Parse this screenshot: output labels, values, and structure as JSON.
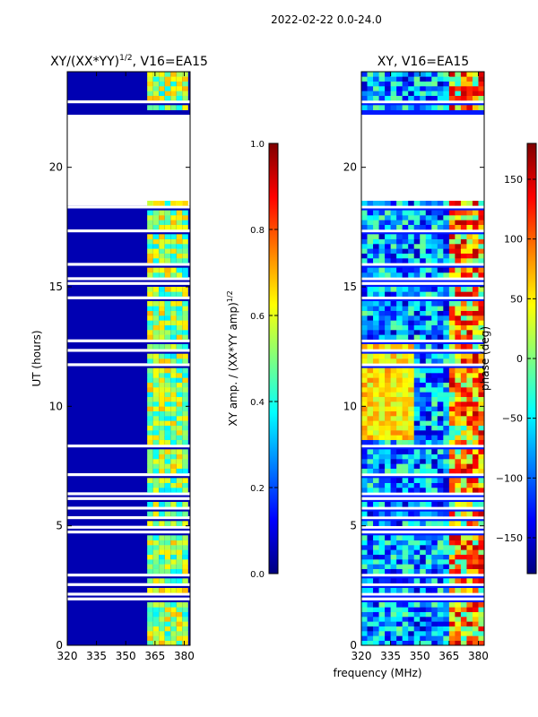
{
  "suptitle": "2022-02-22 0.0-24.0",
  "shared_xlabel": "frequency (MHz)",
  "colormap": [
    "#00007f",
    "#0000ff",
    "#007fff",
    "#00ffff",
    "#7fff7f",
    "#ffff00",
    "#ff7f00",
    "#ff0000",
    "#7f0000"
  ],
  "chart_data": [
    {
      "type": "heatmap",
      "title_main": "XY/(XX*YY)",
      "title_sup": "1/2",
      "title_tail": ", V16=EA15",
      "xlabel": "",
      "ylabel": "UT (hours)",
      "xlim": [
        320,
        383
      ],
      "ylim": [
        0,
        24
      ],
      "xticks": [
        "320",
        "335",
        "350",
        "365",
        "380"
      ],
      "xtick_values": [
        320,
        335,
        350,
        365,
        380
      ],
      "yticks": [
        "0",
        "5",
        "10",
        "15",
        "20"
      ],
      "ytick_values": [
        0,
        5,
        10,
        15,
        20
      ],
      "colorbar": {
        "label_main": "XY amp. / (XX*YY amp)",
        "label_sup": "1/2",
        "range": [
          0.0,
          1.0
        ],
        "ticks": [
          "0.0",
          "0.2",
          "0.4",
          "0.6",
          "0.8",
          "1.0"
        ],
        "tick_values": [
          0.0,
          0.2,
          0.4,
          0.6,
          0.8,
          1.0
        ]
      },
      "data_gap_hours": [
        18.4,
        22.2
      ],
      "background_value": 0.05,
      "high_value_band_mhz": [
        361,
        380
      ]
    },
    {
      "type": "heatmap",
      "title_main": "XY, V16=EA15",
      "title_sup": "",
      "title_tail": "",
      "xlabel": "",
      "ylabel": "",
      "xlim": [
        320,
        383
      ],
      "ylim": [
        0,
        24
      ],
      "xticks": [
        "320",
        "335",
        "350",
        "365",
        "380"
      ],
      "xtick_values": [
        320,
        335,
        350,
        365,
        380
      ],
      "yticks": [
        "0",
        "5",
        "10",
        "15",
        "20"
      ],
      "ytick_values": [
        0,
        5,
        10,
        15,
        20
      ],
      "colorbar": {
        "label_main": "phase (deg)",
        "label_sup": "",
        "range": [
          -180,
          180
        ],
        "ticks": [
          "−150",
          "−100",
          "−50",
          "0",
          "50",
          "100",
          "150"
        ],
        "tick_values": [
          -150,
          -100,
          -50,
          0,
          50,
          100,
          150
        ]
      },
      "data_gap_hours": [
        18.4,
        22.2
      ]
    }
  ]
}
